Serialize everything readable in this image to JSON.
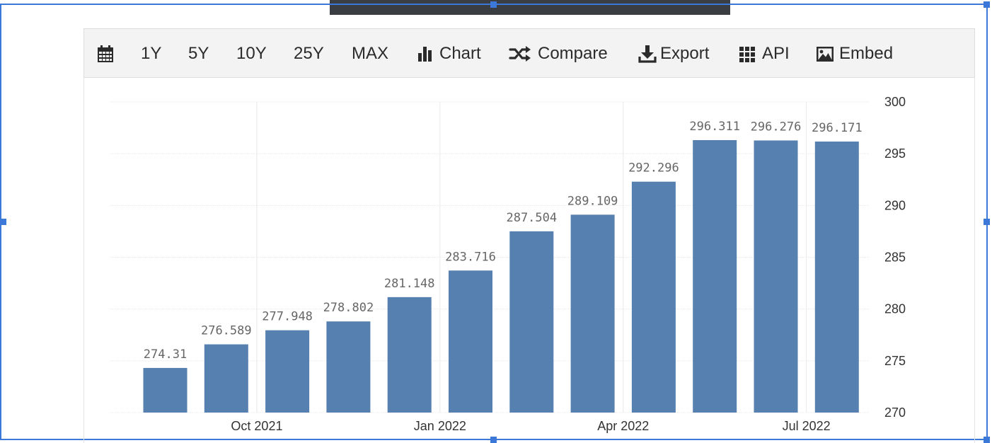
{
  "toolbar": {
    "items": [
      {
        "label": "",
        "icon": "calendar-icon"
      },
      {
        "label": "1Y"
      },
      {
        "label": "5Y"
      },
      {
        "label": "10Y"
      },
      {
        "label": "25Y"
      },
      {
        "label": "MAX"
      },
      {
        "label": "Chart",
        "icon": "bar-chart-icon"
      },
      {
        "label": "Compare",
        "icon": "shuffle-icon"
      },
      {
        "label": "Export",
        "icon": "download-icon"
      },
      {
        "label": "API",
        "icon": "grid-icon"
      },
      {
        "label": "Embed",
        "icon": "image-icon"
      }
    ]
  },
  "colors": {
    "bar": "#5580b0",
    "grid": "#e8e8e8",
    "selection": "#3c78d8"
  },
  "chart_data": {
    "type": "bar",
    "values": [
      274.31,
      276.589,
      277.948,
      278.802,
      281.148,
      283.716,
      287.504,
      289.109,
      292.296,
      296.311,
      296.276,
      296.171
    ],
    "labels": [
      "274.31",
      "276.589",
      "277.948",
      "278.802",
      "281.148",
      "283.716",
      "287.504",
      "289.109",
      "292.296",
      "296.311",
      "296.276",
      "296.171"
    ],
    "x_ticks": [
      "Oct 2021",
      "Jan 2022",
      "Apr 2022",
      "Jul 2022"
    ],
    "x_tick_bar_index": [
      1.5,
      4.5,
      7.5,
      10.5
    ],
    "y_ticks": [
      "270",
      "275",
      "280",
      "285",
      "290",
      "295",
      "300"
    ],
    "ylim": [
      270,
      300
    ],
    "y_axis_side": "right",
    "grid": true
  }
}
